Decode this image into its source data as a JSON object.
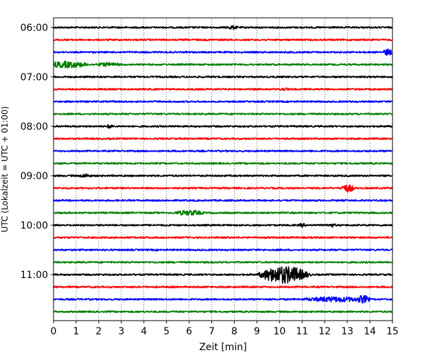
{
  "chart_data": {
    "type": "line",
    "title": "",
    "xlabel": "Zeit  [min]",
    "ylabel": "UTC (Lokalzeit = UTC + 01:00)",
    "xlim": [
      0,
      15
    ],
    "x_ticks": [
      0,
      1,
      2,
      3,
      4,
      5,
      6,
      7,
      8,
      9,
      10,
      11,
      12,
      13,
      14,
      15
    ],
    "y_tick_labels": [
      "06:00",
      "07:00",
      "08:00",
      "09:00",
      "10:00",
      "11:00"
    ],
    "y_tick_trace_index": [
      0,
      4,
      8,
      12,
      16,
      20
    ],
    "grid": "vertical dotted at each minute",
    "legend": "none",
    "trace_interval_minutes": 15,
    "color_cycle": [
      "#000000",
      "#ff0000",
      "#0000ff",
      "#008000"
    ],
    "traces": [
      {
        "start": "06:00",
        "color": "#000000",
        "bursts": [
          {
            "t": 7.9,
            "dur": 0.4,
            "amp": 3
          }
        ]
      },
      {
        "start": "06:15",
        "color": "#ff0000",
        "bursts": []
      },
      {
        "start": "06:30",
        "color": "#0000ff",
        "bursts": [
          {
            "t": 14.8,
            "dur": 0.3,
            "amp": 5
          }
        ]
      },
      {
        "start": "06:45",
        "color": "#008000",
        "bursts": [
          {
            "t": 0.6,
            "dur": 1.2,
            "amp": 5
          },
          {
            "t": 2.4,
            "dur": 0.8,
            "amp": 3
          }
        ]
      },
      {
        "start": "07:00",
        "color": "#000000",
        "bursts": []
      },
      {
        "start": "07:15",
        "color": "#ff0000",
        "bursts": [
          {
            "t": 10.2,
            "dur": 0.5,
            "amp": 2
          }
        ]
      },
      {
        "start": "07:30",
        "color": "#0000ff",
        "bursts": []
      },
      {
        "start": "07:45",
        "color": "#008000",
        "bursts": []
      },
      {
        "start": "08:00",
        "color": "#000000",
        "bursts": [
          {
            "t": 2.5,
            "dur": 0.15,
            "amp": 4
          }
        ]
      },
      {
        "start": "08:15",
        "color": "#ff0000",
        "bursts": []
      },
      {
        "start": "08:30",
        "color": "#0000ff",
        "bursts": []
      },
      {
        "start": "08:45",
        "color": "#008000",
        "bursts": []
      },
      {
        "start": "09:00",
        "color": "#000000",
        "bursts": [
          {
            "t": 1.4,
            "dur": 0.4,
            "amp": 3
          }
        ]
      },
      {
        "start": "09:15",
        "color": "#ff0000",
        "bursts": [
          {
            "t": 13.0,
            "dur": 0.4,
            "amp": 6
          }
        ]
      },
      {
        "start": "09:30",
        "color": "#0000ff",
        "bursts": []
      },
      {
        "start": "09:45",
        "color": "#008000",
        "bursts": [
          {
            "t": 6.0,
            "dur": 0.9,
            "amp": 4
          }
        ]
      },
      {
        "start": "10:00",
        "color": "#000000",
        "bursts": [
          {
            "t": 11.0,
            "dur": 0.2,
            "amp": 3
          },
          {
            "t": 12.3,
            "dur": 0.3,
            "amp": 3
          }
        ]
      },
      {
        "start": "10:15",
        "color": "#ff0000",
        "bursts": []
      },
      {
        "start": "10:30",
        "color": "#0000ff",
        "bursts": []
      },
      {
        "start": "10:45",
        "color": "#008000",
        "bursts": []
      },
      {
        "start": "11:00",
        "color": "#000000",
        "bursts": [
          {
            "t": 10.2,
            "dur": 1.3,
            "amp": 13
          }
        ]
      },
      {
        "start": "11:15",
        "color": "#ff0000",
        "bursts": []
      },
      {
        "start": "11:30",
        "color": "#0000ff",
        "bursts": [
          {
            "t": 12.5,
            "dur": 2.0,
            "amp": 4
          },
          {
            "t": 13.7,
            "dur": 0.4,
            "amp": 6
          }
        ]
      },
      {
        "start": "11:45",
        "color": "#008000",
        "bursts": []
      }
    ]
  }
}
